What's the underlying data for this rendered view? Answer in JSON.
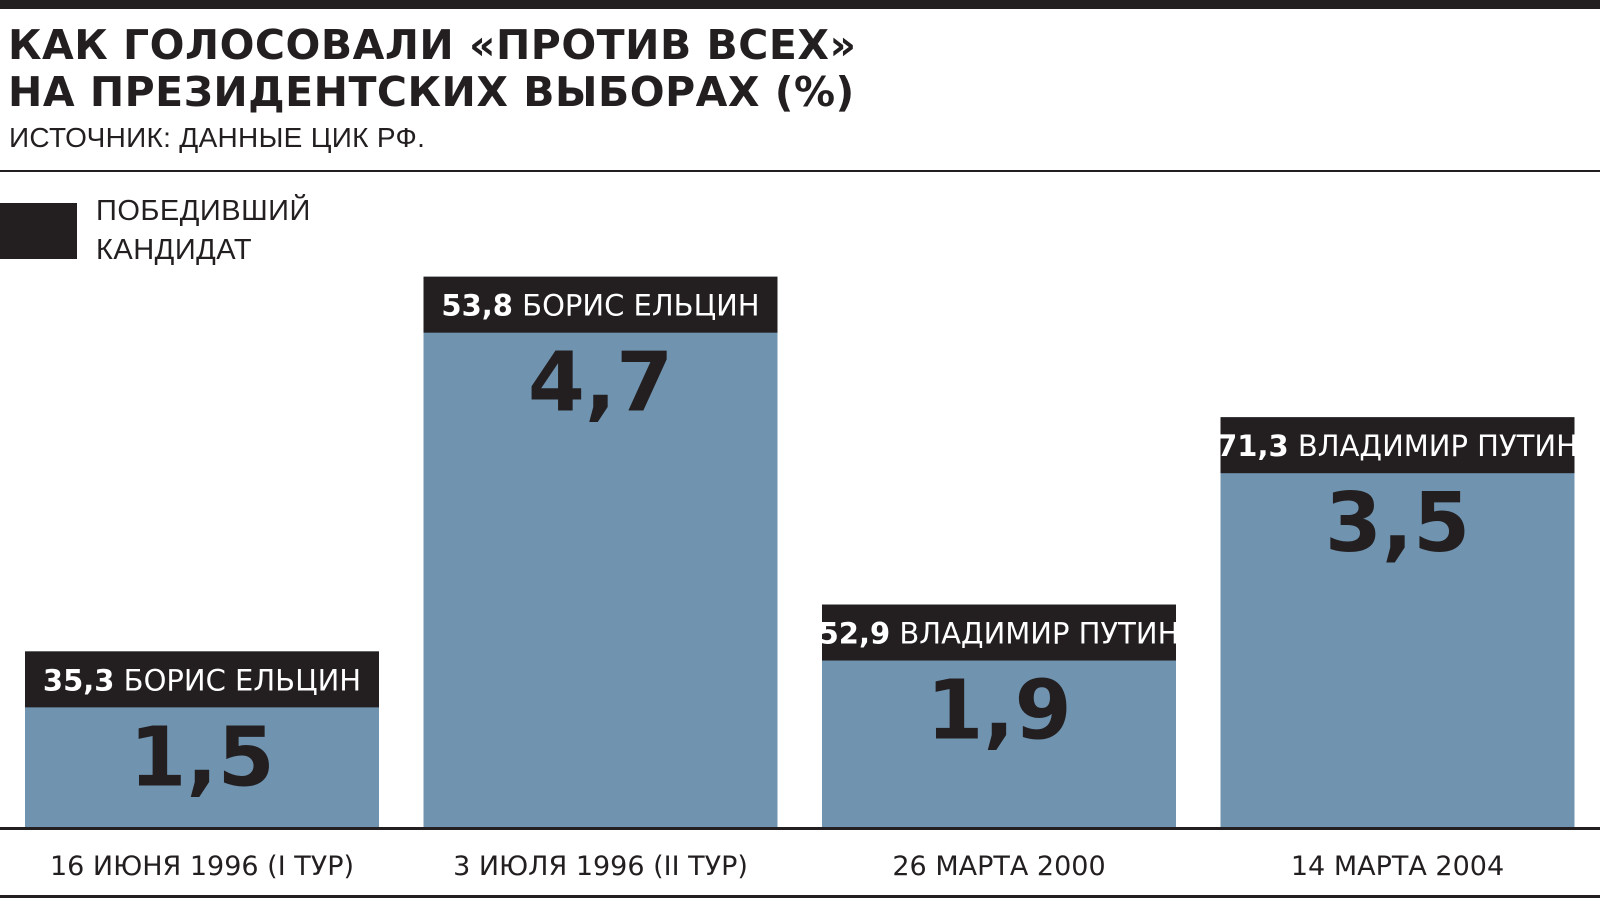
{
  "chart_data": {
    "type": "bar",
    "title": "КАК ГОЛОСОВАЛИ «ПРОТИВ ВСЕХ»\nНА ПРЕЗИДЕНТСКИХ ВЫБОРАХ (%)",
    "subtitle": "ИСТОЧНИК: ДАННЫЕ ЦИК РФ.",
    "categories": [
      "16 ИЮНЯ 1996 (I ТУР)",
      "3 ИЮЛЯ 1996 (II ТУР)",
      "26 МАРТА 2000",
      "14 МАРТА 2004"
    ],
    "values": [
      1.5,
      4.7,
      1.9,
      3.5
    ],
    "value_labels": [
      "1,5",
      "4,7",
      "1,9",
      "3,5"
    ],
    "winners": [
      {
        "share": "35,3",
        "name": "БОРИС ЕЛЬЦИН"
      },
      {
        "share": "53,8",
        "name": "БОРИС ЕЛЬЦИН"
      },
      {
        "share": "52,9",
        "name": "ВЛАДИМИР ПУТИН"
      },
      {
        "share": "71,3",
        "name": "ВЛАДИМИР ПУТИН"
      }
    ],
    "legend": {
      "label": "ПОБЕДИВШИЙ\nКАНДИДАТ",
      "placement": "top-left"
    },
    "xlabel": "",
    "ylabel": "",
    "ylim": [
      0,
      5.5
    ],
    "grid": false,
    "colors": {
      "bar": "#7094b0",
      "winner_band": "#231f20",
      "text": "#231f20"
    }
  }
}
